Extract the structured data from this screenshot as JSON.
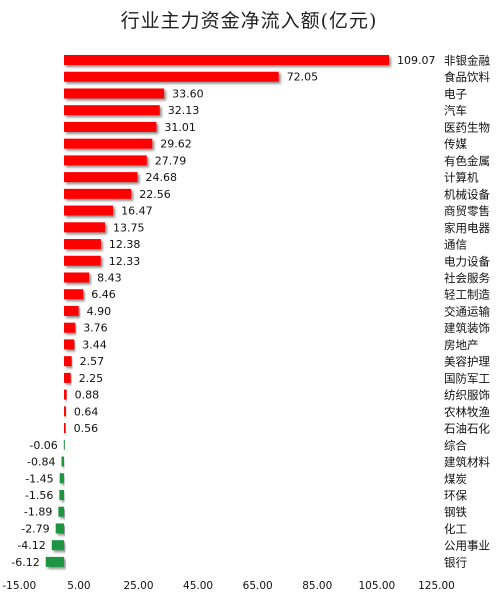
{
  "chart_data": {
    "type": "bar",
    "orientation": "horizontal",
    "title": "行业主力资金净流入额(亿元)",
    "categories": [
      "非银金融",
      "食品饮料",
      "电子",
      "汽车",
      "医药生物",
      "传媒",
      "有色金属",
      "计算机",
      "机械设备",
      "商贸零售",
      "家用电器",
      "通信",
      "电力设备",
      "社会服务",
      "轻工制造",
      "交通运输",
      "建筑装饰",
      "房地产",
      "美容护理",
      "国防军工",
      "纺织服饰",
      "农林牧渔",
      "石油石化",
      "综合",
      "建筑材料",
      "煤炭",
      "环保",
      "钢铁",
      "化工",
      "公用事业",
      "银行"
    ],
    "values": [
      109.07,
      72.05,
      33.6,
      32.13,
      31.01,
      29.62,
      27.79,
      24.68,
      22.56,
      16.47,
      13.75,
      12.38,
      12.33,
      8.43,
      6.46,
      4.9,
      3.76,
      3.44,
      2.57,
      2.25,
      0.88,
      0.64,
      0.56,
      -0.06,
      -0.84,
      -1.45,
      -1.56,
      -1.89,
      -2.79,
      -4.12,
      -6.12
    ],
    "value_labels": [
      "109.07",
      "72.05",
      "33.60",
      "32.13",
      "31.01",
      "29.62",
      "27.79",
      "24.68",
      "22.56",
      "16.47",
      "13.75",
      "12.38",
      "12.33",
      "8.43",
      "6.46",
      "4.90",
      "3.76",
      "3.44",
      "2.57",
      "2.25",
      "0.88",
      "0.64",
      "0.56",
      "-0.06",
      "-0.84",
      "-1.45",
      "-1.56",
      "-1.89",
      "-2.79",
      "-4.12",
      "-6.12"
    ],
    "x_ticks": [
      "-15.00",
      "5.00",
      "25.00",
      "45.00",
      "65.00",
      "85.00",
      "105.00",
      "125.00"
    ],
    "x_tick_values": [
      -15,
      5,
      25,
      45,
      65,
      85,
      105,
      125
    ],
    "xlim": [
      -15,
      125
    ],
    "grid": false,
    "colors": {
      "positive": "#ff0000",
      "negative": "#1a9641"
    }
  }
}
